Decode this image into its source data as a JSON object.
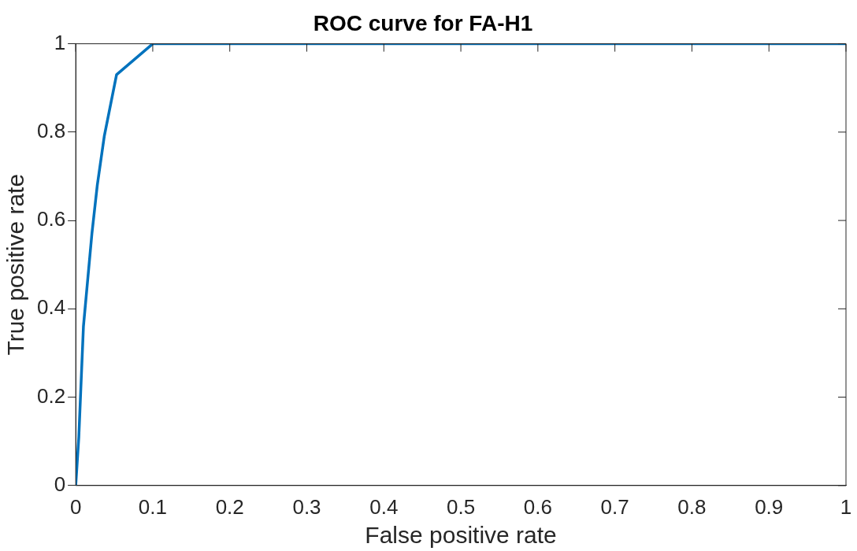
{
  "chart_data": {
    "type": "line",
    "title": "ROC curve for FA-H1",
    "xlabel": "False positive rate",
    "ylabel": "True positive rate",
    "series": [
      {
        "color": "#0072bd",
        "x": [
          0,
          0.004,
          0.01,
          0.021,
          0.028,
          0.037,
          0.053,
          0.1,
          1
        ],
        "values": [
          0,
          0.11,
          0.36,
          0.57,
          0.68,
          0.79,
          0.93,
          1,
          1
        ]
      }
    ],
    "xlim": [
      0,
      1
    ],
    "xticks": [
      0,
      0.1,
      0.2,
      0.3,
      0.4,
      0.5,
      0.6,
      0.7,
      0.8,
      0.9,
      1
    ],
    "ylim": [
      0,
      1
    ],
    "yticks": [
      0,
      0.2,
      0.4,
      0.6,
      0.8,
      1
    ],
    "grid": false,
    "legend": false,
    "marker": "none",
    "line_style": "solid"
  }
}
